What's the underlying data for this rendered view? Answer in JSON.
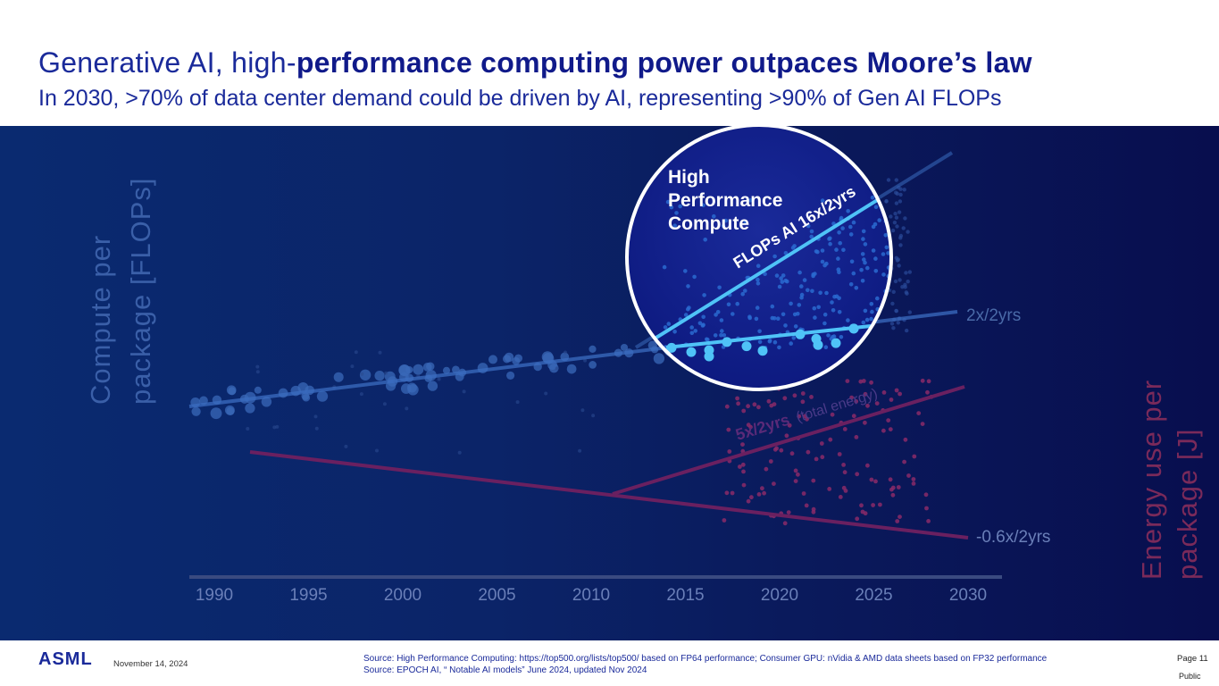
{
  "header": {
    "title_light": "Generative AI, high-",
    "title_bold": "performance computing power outpaces Moore’s law",
    "subtitle": "In 2030, >70% of data center demand could be driven by AI, representing >90% of Gen AI FLOPs"
  },
  "chart_data": {
    "type": "scatter",
    "title": "Generative AI, high-performance computing power outpaces Moore’s law",
    "ylabel_left": [
      "Compute per",
      "package [FLOPs]"
    ],
    "ylabel_right": [
      "Energy use per",
      "package [J]"
    ],
    "x_ticks": [
      "1990",
      "1995",
      "2000",
      "2005",
      "2010",
      "2015",
      "2020",
      "2025",
      "2030"
    ],
    "xlim": [
      1990,
      2030
    ],
    "callout": {
      "title_lines": [
        "High",
        "Performance",
        "Compute"
      ],
      "trend_label": "FLOPs AI 16x/2yrs"
    },
    "trends": [
      {
        "name": "compute",
        "label": "2x/2yrs"
      },
      {
        "name": "ai_energy",
        "label_bold": "5x/2yrs",
        "label_note": "(total energy)"
      },
      {
        "name": "energy",
        "label": "-0.6x/2yrs"
      }
    ],
    "colors": {
      "compute": "#3b6cc0",
      "ai_flops": "#4fc3f7",
      "energy": "#6a2060",
      "energy_dots": "#8a2a68",
      "axis_text": "#6a7fb8",
      "energy_label": "#7a2a5a"
    }
  },
  "footer": {
    "logo": "ASML",
    "date": "November 14, 2024",
    "source_1": "Source: High Performance Computing: https://top500.org/lists/top500/ based on FP64 performance; Consumer GPU: nVidia & AMD data sheets based on FP32 performance",
    "source_2": "Source: EPOCH AI, “ Notable AI models” June 2024, updated Nov 2024",
    "page": "Page 11",
    "classification": "Public"
  }
}
